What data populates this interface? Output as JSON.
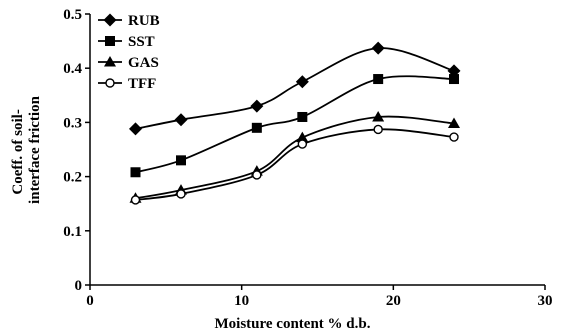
{
  "chart_data": {
    "type": "line",
    "title": "",
    "xlabel": "Moisture content % d.b.",
    "ylabel_lines": [
      "Coeff. of soil-",
      "interface friction"
    ],
    "xlim": [
      0,
      30
    ],
    "ylim": [
      0,
      0.5
    ],
    "x_ticks": [
      "0",
      "10",
      "20",
      "30"
    ],
    "y_ticks": [
      "0",
      "0.1",
      "0.2",
      "0.3",
      "0.4",
      "0.5"
    ],
    "grid": false,
    "legend_position": "top-left",
    "series": [
      {
        "name": "RUB",
        "marker": "diamond",
        "x": [
          3,
          6,
          11,
          14,
          19,
          24
        ],
        "y": [
          0.288,
          0.305,
          0.33,
          0.375,
          0.437,
          0.395
        ]
      },
      {
        "name": "SST",
        "marker": "square",
        "x": [
          3,
          6,
          11,
          14,
          19,
          24
        ],
        "y": [
          0.208,
          0.23,
          0.29,
          0.31,
          0.38,
          0.38
        ]
      },
      {
        "name": "GAS",
        "marker": "triangle",
        "x": [
          3,
          6,
          11,
          14,
          19,
          24
        ],
        "y": [
          0.16,
          0.175,
          0.21,
          0.272,
          0.31,
          0.298
        ]
      },
      {
        "name": "TFF",
        "marker": "circle-open",
        "x": [
          3,
          6,
          11,
          14,
          19,
          24
        ],
        "y": [
          0.157,
          0.168,
          0.203,
          0.26,
          0.287,
          0.273
        ]
      }
    ]
  }
}
